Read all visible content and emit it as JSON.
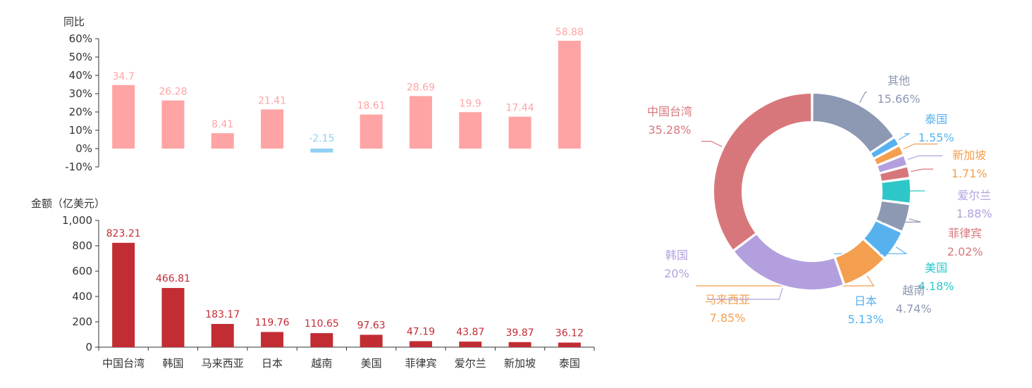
{
  "colors": {
    "positive_bar": "#ffa4a4",
    "negative_bar": "#8fd0f3",
    "amount_bar": "#c22d34",
    "axis": "#333333",
    "label": "#333333"
  },
  "chart_data": [
    {
      "type": "bar",
      "ylabel": "同比",
      "categories": [
        "中国台湾",
        "韩国",
        "马来西亚",
        "日本",
        "越南",
        "美国",
        "菲律宾",
        "爱尔兰",
        "新加坡",
        "泰国"
      ],
      "values": [
        34.7,
        26.28,
        8.41,
        21.41,
        -2.15,
        18.61,
        28.69,
        19.9,
        17.44,
        58.88
      ],
      "ylim": [
        -10,
        60
      ],
      "yticks": [
        "-10%",
        "0%",
        "10%",
        "20%",
        "30%",
        "40%",
        "50%",
        "60%"
      ],
      "data_labels": [
        "34.7",
        "26.28",
        "8.41",
        "21.41",
        "-2.15",
        "18.61",
        "28.69",
        "19.9",
        "17.44",
        "58.88"
      ]
    },
    {
      "type": "bar",
      "ylabel": "金额（亿美元）",
      "categories": [
        "中国台湾",
        "韩国",
        "马来西亚",
        "日本",
        "越南",
        "美国",
        "菲律宾",
        "爱尔兰",
        "新加坡",
        "泰国"
      ],
      "values": [
        823.21,
        466.81,
        183.17,
        119.76,
        110.65,
        97.63,
        47.19,
        43.87,
        39.87,
        36.12
      ],
      "ylim": [
        0,
        1000
      ],
      "yticks": [
        "0",
        "200",
        "400",
        "600",
        "800",
        "1,000"
      ],
      "data_labels": [
        "823.21",
        "466.81",
        "183.17",
        "119.76",
        "110.65",
        "97.63",
        "47.19",
        "43.87",
        "39.87",
        "36.12"
      ]
    },
    {
      "type": "pie",
      "donut": true,
      "slices": [
        {
          "name": "其他",
          "value": 15.66,
          "label": "15.66%",
          "color": "#8d98b3"
        },
        {
          "name": "泰国",
          "value": 1.55,
          "label": "1.55%",
          "color": "#58b1ef"
        },
        {
          "name": "新加坡",
          "value": 1.71,
          "label": "1.71%",
          "color": "#f49f4f"
        },
        {
          "name": "爱尔兰",
          "value": 1.88,
          "label": "1.88%",
          "color": "#b39fde"
        },
        {
          "name": "菲律宾",
          "value": 2.02,
          "label": "2.02%",
          "color": "#d8777b"
        },
        {
          "name": "美国",
          "value": 4.18,
          "label": "4.18%",
          "color": "#2ec7c9"
        },
        {
          "name": "越南",
          "value": 4.74,
          "label": "4.74%",
          "color": "#8d98b3"
        },
        {
          "name": "日本",
          "value": 5.13,
          "label": "5.13%",
          "color": "#58b1ef"
        },
        {
          "name": "马来西亚",
          "value": 7.85,
          "label": "7.85%",
          "color": "#f49f4f"
        },
        {
          "name": "韩国",
          "value": 20,
          "label": "20%",
          "color": "#b39fde"
        },
        {
          "name": "中国台湾",
          "value": 35.28,
          "label": "35.28%",
          "color": "#d8777b"
        }
      ]
    }
  ]
}
